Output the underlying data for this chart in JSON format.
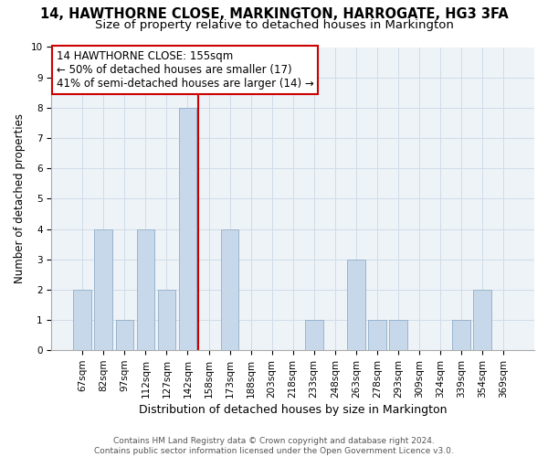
{
  "title": "14, HAWTHORNE CLOSE, MARKINGTON, HARROGATE, HG3 3FA",
  "subtitle": "Size of property relative to detached houses in Markington",
  "xlabel": "Distribution of detached houses by size in Markington",
  "ylabel": "Number of detached properties",
  "bar_labels": [
    "67sqm",
    "82sqm",
    "97sqm",
    "112sqm",
    "127sqm",
    "142sqm",
    "158sqm",
    "173sqm",
    "188sqm",
    "203sqm",
    "218sqm",
    "233sqm",
    "248sqm",
    "263sqm",
    "278sqm",
    "293sqm",
    "309sqm",
    "324sqm",
    "339sqm",
    "354sqm",
    "369sqm"
  ],
  "bar_values": [
    2,
    4,
    1,
    4,
    2,
    8,
    0,
    4,
    0,
    0,
    0,
    1,
    0,
    3,
    1,
    1,
    0,
    0,
    1,
    2,
    0
  ],
  "bar_color": "#c8d8eb",
  "bar_edge_color": "#9ab4cc",
  "vline_pos": 5.5,
  "vline_color": "#cc0000",
  "annotation_line1": "14 HAWTHORNE CLOSE: 155sqm",
  "annotation_line2": "← 50% of detached houses are smaller (17)",
  "annotation_line3": "41% of semi-detached houses are larger (14) →",
  "annotation_box_color": "#ffffff",
  "annotation_box_edgecolor": "#cc0000",
  "ylim": [
    0,
    10
  ],
  "yticks": [
    0,
    1,
    2,
    3,
    4,
    5,
    6,
    7,
    8,
    9,
    10
  ],
  "footer_line1": "Contains HM Land Registry data © Crown copyright and database right 2024.",
  "footer_line2": "Contains public sector information licensed under the Open Government Licence v3.0.",
  "title_fontsize": 10.5,
  "subtitle_fontsize": 9.5,
  "xlabel_fontsize": 9,
  "ylabel_fontsize": 8.5,
  "tick_fontsize": 7.5,
  "annotation_fontsize": 8.5,
  "footer_fontsize": 6.5,
  "grid_color": "#d0dce8",
  "background_color": "#eef3f8"
}
